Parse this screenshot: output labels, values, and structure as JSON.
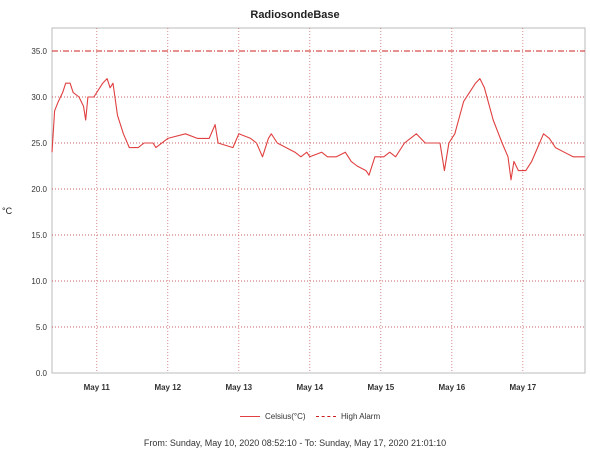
{
  "title": "RadiosondeBase",
  "ylabel": "°C",
  "legend": {
    "celsius": "Celsius(°C)",
    "alarm": "High Alarm"
  },
  "footer": "From: Sunday, May 10, 2020 08:52:10  -  To: Sunday, May 17, 2020 21:01:10",
  "colors": {
    "series": "#e04040",
    "alarm": "#cc2020",
    "grid": "#c8c8c8",
    "vgrid": "#e8a0a0"
  },
  "chart_data": {
    "type": "line",
    "title": "RadiosondeBase",
    "xlabel": "",
    "ylabel": "°C",
    "ylim": [
      0.0,
      37.5
    ],
    "xlim": [
      "2020-05-10 08:52",
      "2020-05-17 21:01"
    ],
    "yticks": [
      "0.0",
      "5.0",
      "10.0",
      "15.0",
      "20.0",
      "25.0",
      "30.0",
      "35.0"
    ],
    "xticks": [
      {
        "label": "May 11",
        "at": "2020-05-11 00:00"
      },
      {
        "label": "May 12",
        "at": "2020-05-12 00:00"
      },
      {
        "label": "May 13",
        "at": "2020-05-13 00:00"
      },
      {
        "label": "May 14",
        "at": "2020-05-14 00:00"
      },
      {
        "label": "May 15",
        "at": "2020-05-15 00:00"
      },
      {
        "label": "May 16",
        "at": "2020-05-16 00:00"
      },
      {
        "label": "May 17",
        "at": "2020-05-17 00:00"
      }
    ],
    "grid": true,
    "legend_position": "bottom",
    "high_alarm": 35.0,
    "series": [
      {
        "name": "Celsius(°C)",
        "points": [
          [
            "2020-05-10 08:52",
            24.0
          ],
          [
            "2020-05-10 09:45",
            28.5
          ],
          [
            "2020-05-10 11:00",
            29.5
          ],
          [
            "2020-05-10 12:30",
            30.5
          ],
          [
            "2020-05-10 13:30",
            31.5
          ],
          [
            "2020-05-10 15:00",
            31.5
          ],
          [
            "2020-05-10 16:00",
            30.5
          ],
          [
            "2020-05-10 18:00",
            30.0
          ],
          [
            "2020-05-10 19:30",
            29.0
          ],
          [
            "2020-05-10 20:15",
            27.5
          ],
          [
            "2020-05-10 21:00",
            30.0
          ],
          [
            "2020-05-10 23:00",
            30.0
          ],
          [
            "2020-05-11 00:00",
            30.5
          ],
          [
            "2020-05-11 02:00",
            31.5
          ],
          [
            "2020-05-11 03:30",
            32.0
          ],
          [
            "2020-05-11 04:30",
            31.0
          ],
          [
            "2020-05-11 05:30",
            31.5
          ],
          [
            "2020-05-11 07:00",
            28.0
          ],
          [
            "2020-05-11 09:00",
            26.0
          ],
          [
            "2020-05-11 11:00",
            24.5
          ],
          [
            "2020-05-11 14:00",
            24.5
          ],
          [
            "2020-05-11 16:00",
            25.0
          ],
          [
            "2020-05-11 19:00",
            25.0
          ],
          [
            "2020-05-11 20:00",
            24.5
          ],
          [
            "2020-05-12 00:00",
            25.5
          ],
          [
            "2020-05-12 06:00",
            26.0
          ],
          [
            "2020-05-12 10:00",
            25.5
          ],
          [
            "2020-05-12 14:00",
            25.5
          ],
          [
            "2020-05-12 16:00",
            27.0
          ],
          [
            "2020-05-12 17:00",
            25.0
          ],
          [
            "2020-05-12 22:00",
            24.5
          ],
          [
            "2020-05-13 00:00",
            26.0
          ],
          [
            "2020-05-13 04:00",
            25.5
          ],
          [
            "2020-05-13 06:00",
            25.0
          ],
          [
            "2020-05-13 08:00",
            23.5
          ],
          [
            "2020-05-13 10:00",
            25.5
          ],
          [
            "2020-05-13 11:00",
            26.0
          ],
          [
            "2020-05-13 13:00",
            25.0
          ],
          [
            "2020-05-13 16:00",
            24.5
          ],
          [
            "2020-05-13 19:00",
            24.0
          ],
          [
            "2020-05-13 21:00",
            23.5
          ],
          [
            "2020-05-13 23:00",
            24.0
          ],
          [
            "2020-05-14 00:00",
            23.5
          ],
          [
            "2020-05-14 04:00",
            24.0
          ],
          [
            "2020-05-14 06:00",
            23.5
          ],
          [
            "2020-05-14 09:00",
            23.5
          ],
          [
            "2020-05-14 12:00",
            24.0
          ],
          [
            "2020-05-14 14:00",
            23.0
          ],
          [
            "2020-05-14 16:00",
            22.5
          ],
          [
            "2020-05-14 19:00",
            22.0
          ],
          [
            "2020-05-14 20:00",
            21.5
          ],
          [
            "2020-05-14 22:00",
            23.5
          ],
          [
            "2020-05-15 01:00",
            23.5
          ],
          [
            "2020-05-15 03:00",
            24.0
          ],
          [
            "2020-05-15 05:00",
            23.5
          ],
          [
            "2020-05-15 08:00",
            25.0
          ],
          [
            "2020-05-15 10:00",
            25.5
          ],
          [
            "2020-05-15 12:00",
            26.0
          ],
          [
            "2020-05-15 15:00",
            25.0
          ],
          [
            "2020-05-15 20:00",
            25.0
          ],
          [
            "2020-05-15 21:30",
            22.0
          ],
          [
            "2020-05-15 23:00",
            25.0
          ],
          [
            "2020-05-16 01:00",
            26.0
          ],
          [
            "2020-05-16 04:00",
            29.5
          ],
          [
            "2020-05-16 08:00",
            31.5
          ],
          [
            "2020-05-16 09:30",
            32.0
          ],
          [
            "2020-05-16 11:00",
            31.0
          ],
          [
            "2020-05-16 14:00",
            27.5
          ],
          [
            "2020-05-16 17:00",
            25.0
          ],
          [
            "2020-05-16 19:00",
            23.5
          ],
          [
            "2020-05-16 20:00",
            21.0
          ],
          [
            "2020-05-16 21:00",
            23.0
          ],
          [
            "2020-05-16 22:30",
            22.0
          ],
          [
            "2020-05-17 01:00",
            22.0
          ],
          [
            "2020-05-17 03:00",
            23.0
          ],
          [
            "2020-05-17 05:00",
            24.5
          ],
          [
            "2020-05-17 07:00",
            26.0
          ],
          [
            "2020-05-17 09:00",
            25.5
          ],
          [
            "2020-05-17 11:00",
            24.5
          ],
          [
            "2020-05-17 14:00",
            24.0
          ],
          [
            "2020-05-17 17:00",
            23.5
          ],
          [
            "2020-05-17 21:01",
            23.5
          ]
        ]
      },
      {
        "name": "High Alarm",
        "constant": 35.0
      }
    ]
  }
}
